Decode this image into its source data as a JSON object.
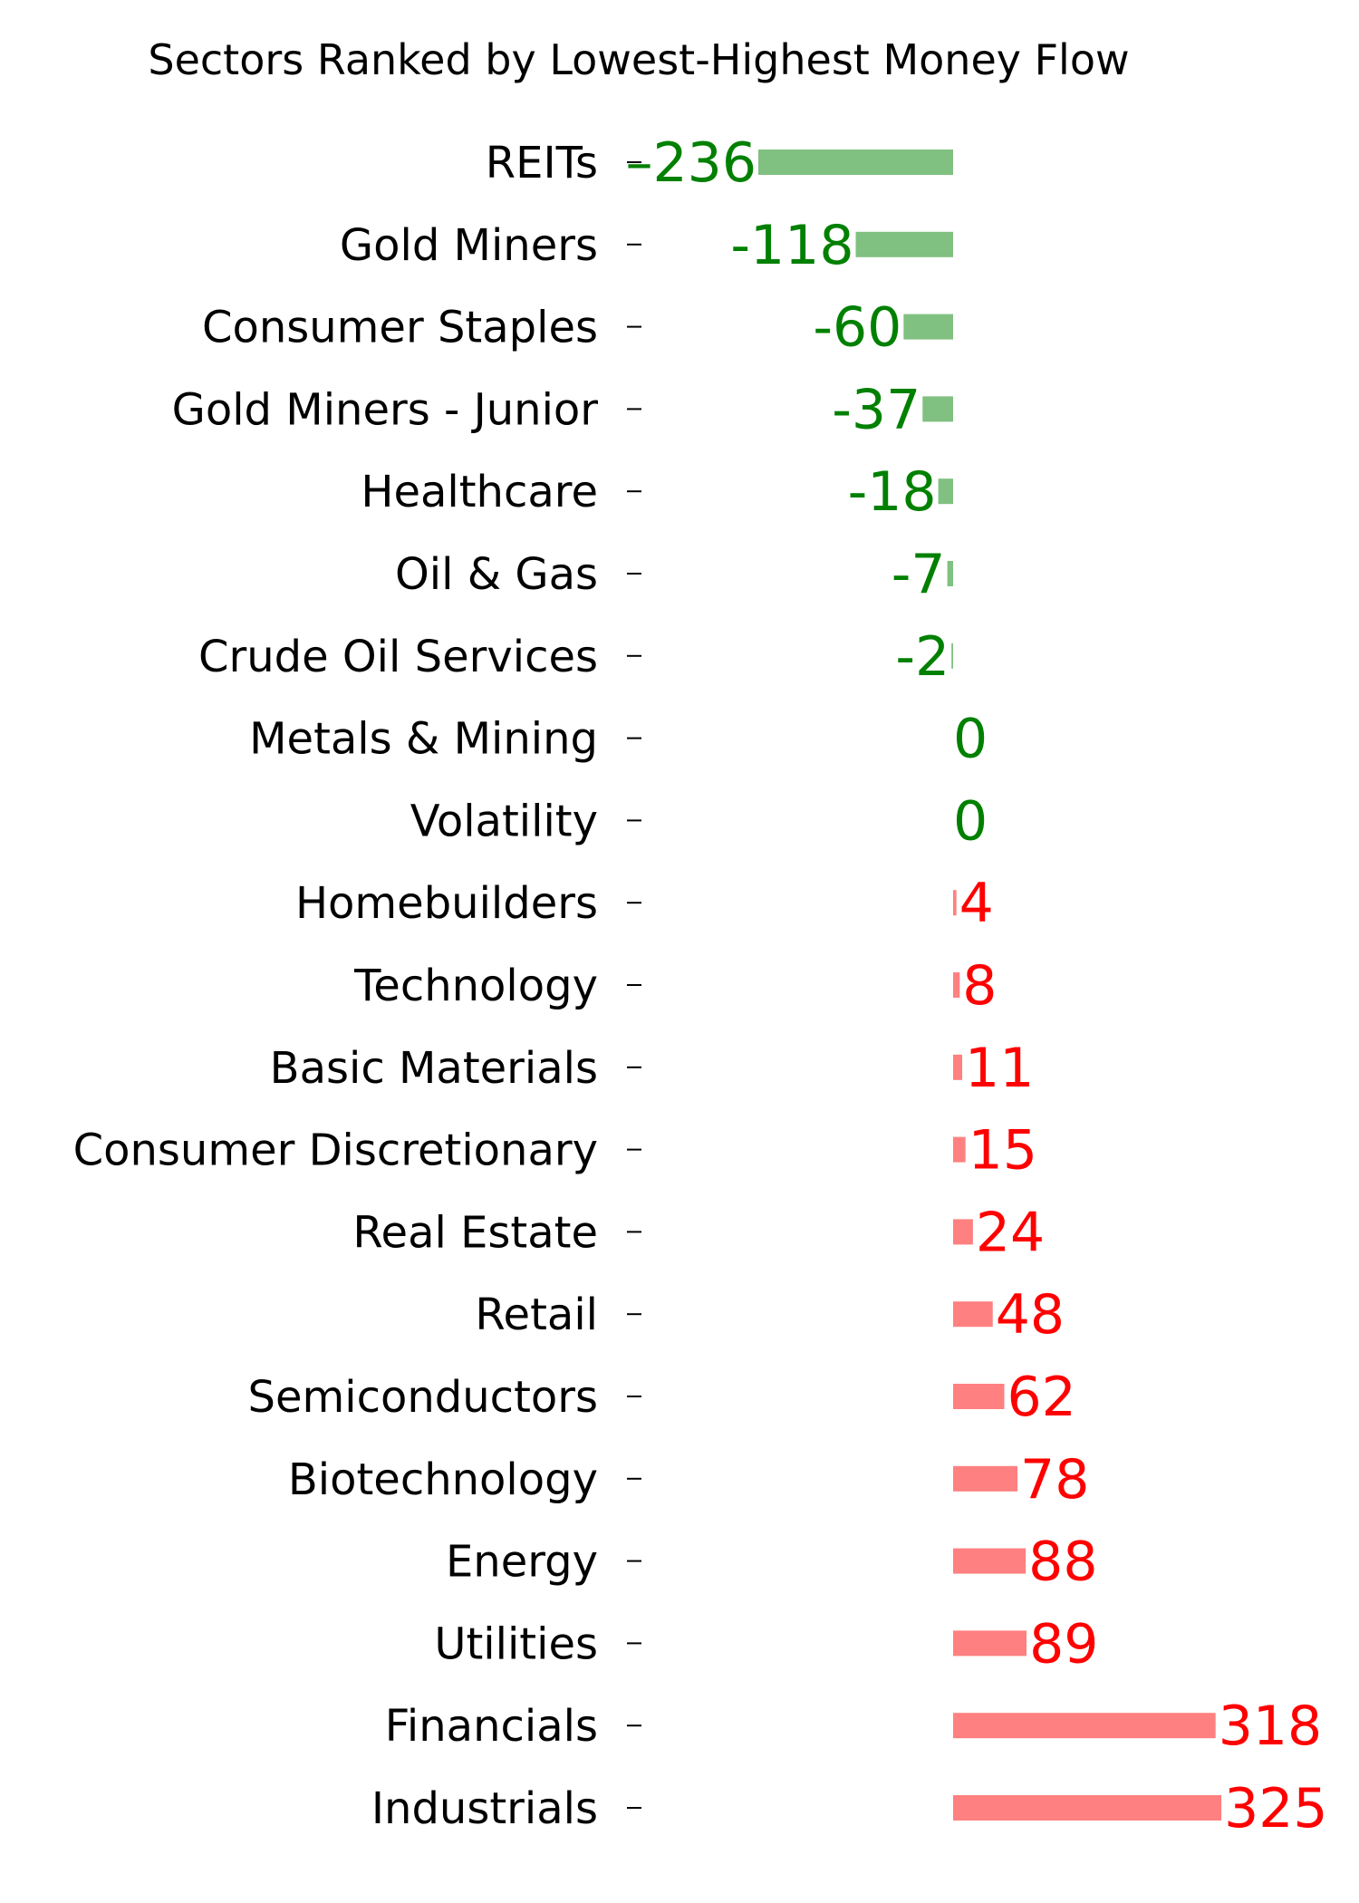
{
  "chart_data": {
    "type": "bar",
    "orientation": "horizontal",
    "title": "Sectors Ranked by Lowest-Highest Money Flow",
    "xlabel": "",
    "ylabel": "",
    "grid": false,
    "legend": "none",
    "categories": [
      "REITs",
      "Gold Miners",
      "Consumer Staples",
      "Gold Miners - Junior",
      "Healthcare",
      "Oil & Gas",
      "Crude Oil Services",
      "Metals & Mining",
      "Volatility",
      "Homebuilders",
      "Technology",
      "Basic Materials",
      "Consumer Discretionary",
      "Real Estate",
      "Retail",
      "Semiconductors",
      "Biotechnology",
      "Energy",
      "Utilities",
      "Financials",
      "Industrials"
    ],
    "values": [
      -236,
      -118,
      -60,
      -37,
      -18,
      -7,
      -2,
      0,
      0,
      4,
      8,
      11,
      15,
      24,
      48,
      62,
      78,
      88,
      89,
      318,
      325
    ],
    "value_labels": [
      "–236",
      "-118",
      "-60",
      "-37",
      "-18",
      "-7",
      "-2",
      "0",
      "0",
      "4",
      "8",
      "11",
      "15",
      "24",
      "48",
      "62",
      "78",
      "88",
      "89",
      "318",
      "325"
    ],
    "colors": {
      "negative_bar": "#80c080",
      "negative_text": "#008000",
      "positive_bar": "#ff8080",
      "positive_text": "#ff0000"
    }
  }
}
